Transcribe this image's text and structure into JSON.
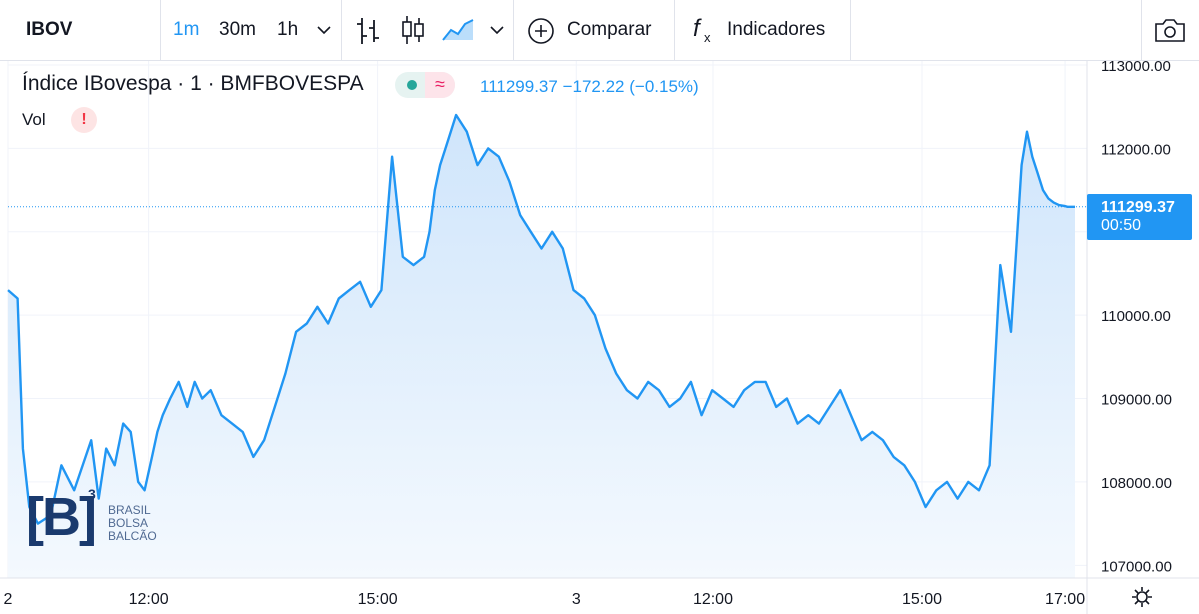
{
  "toolbar": {
    "symbol": "IBOV",
    "intervals": [
      "1m",
      "30m",
      "1h"
    ],
    "active_interval": "1m",
    "compare_label": "Comparar",
    "indicators_label": "Indicadores",
    "icons": [
      "chevron-down-icon",
      "bar-chart-icon",
      "candlestick-icon",
      "area-chart-icon",
      "plus-circle-icon",
      "function-icon",
      "camera-icon"
    ]
  },
  "legend": {
    "title": "Índice IBovespa · 1 · BMFBOVESPA",
    "last_price": "111299.37",
    "change": "−172.22 (−0.15%)",
    "vol_label": "Vol",
    "warn_symbol": "!",
    "approx_symbol": "≈"
  },
  "logo": {
    "mark": "[B]",
    "superscript": "3",
    "lines": [
      "BRASIL",
      "BOLSA",
      "BALCÃO"
    ]
  },
  "price_tag": {
    "price": "111299.37",
    "countdown": "00:50"
  },
  "colors": {
    "line": "#2196f3",
    "area_top": "#cfe5fb",
    "area_bottom": "#f4f9fe",
    "grid": "#f0f3fa",
    "accent": "#2196f3"
  },
  "chart_data": {
    "type": "area",
    "title": "Índice IBovespa · 1 · BMFBOVESPA",
    "ylim": [
      106800,
      113000
    ],
    "y_ticks": [
      107000,
      108000,
      109000,
      110000,
      111000,
      112000,
      113000
    ],
    "y_tick_labels": [
      "107000.00",
      "108000.00",
      "109000.00",
      "110000.00",
      "111000.00",
      "112000.00",
      "113000.00"
    ],
    "x_ticks": [
      "2",
      "12:00",
      "15:00",
      "3",
      "12:00",
      "15:00",
      "17:00"
    ],
    "x_tick_positions": [
      0.0,
      0.1318,
      0.3464,
      0.5326,
      0.6607,
      0.8566,
      0.9907
    ],
    "last_value": 111299.37,
    "grid": true,
    "series": [
      {
        "x": [
          0.0,
          0.009,
          0.014,
          0.02,
          0.028,
          0.04,
          0.05,
          0.062,
          0.07,
          0.078,
          0.085,
          0.092,
          0.1,
          0.108,
          0.115,
          0.122,
          0.128,
          0.135,
          0.14,
          0.145,
          0.152,
          0.16,
          0.168,
          0.175,
          0.182,
          0.19,
          0.2,
          0.21,
          0.22,
          0.23,
          0.24,
          0.25,
          0.26,
          0.27,
          0.28,
          0.29,
          0.3,
          0.31,
          0.32,
          0.33,
          0.34,
          0.35,
          0.36,
          0.37,
          0.38,
          0.39,
          0.395,
          0.4,
          0.405,
          0.41,
          0.42,
          0.43,
          0.44,
          0.45,
          0.46,
          0.47,
          0.48,
          0.49,
          0.5,
          0.51,
          0.52,
          0.53,
          0.54,
          0.55,
          0.56,
          0.57,
          0.58,
          0.59,
          0.6,
          0.61,
          0.62,
          0.63,
          0.64,
          0.65,
          0.66,
          0.67,
          0.68,
          0.69,
          0.7,
          0.71,
          0.72,
          0.73,
          0.74,
          0.75,
          0.76,
          0.77,
          0.78,
          0.79,
          0.8,
          0.81,
          0.82,
          0.83,
          0.84,
          0.85,
          0.86,
          0.87,
          0.88,
          0.89,
          0.9,
          0.91,
          0.92,
          0.93,
          0.94,
          0.95,
          0.955,
          0.96,
          0.965,
          0.97,
          0.975,
          0.98,
          0.985,
          0.99,
          0.993,
          0.997,
          1.0
        ],
        "y": [
          110300,
          110200,
          108400,
          107700,
          107500,
          107600,
          108200,
          107900,
          108200,
          108500,
          107800,
          108400,
          108200,
          108700,
          108600,
          108000,
          107900,
          108300,
          108600,
          108800,
          109000,
          109200,
          108900,
          109200,
          109000,
          109100,
          108800,
          108700,
          108600,
          108300,
          108500,
          108900,
          109300,
          109800,
          109900,
          110100,
          109900,
          110200,
          110300,
          110400,
          110100,
          110300,
          111900,
          110700,
          110600,
          110700,
          111000,
          111500,
          111800,
          112000,
          112400,
          112200,
          111800,
          112000,
          111900,
          111600,
          111200,
          111000,
          110800,
          111000,
          110800,
          110300,
          110200,
          110000,
          109600,
          109300,
          109100,
          109000,
          109200,
          109100,
          108900,
          109000,
          109200,
          108800,
          109100,
          109000,
          108900,
          109100,
          109200,
          109200,
          108900,
          109000,
          108700,
          108800,
          108700,
          108900,
          109100,
          108800,
          108500,
          108600,
          108500,
          108300,
          108200,
          108000,
          107700,
          107900,
          108000,
          107800,
          108000,
          107900,
          108200,
          110600,
          109800,
          111800,
          112200,
          111900,
          111700,
          111500,
          111400,
          111350,
          111320,
          111310,
          111300,
          111299,
          111299
        ]
      }
    ]
  }
}
